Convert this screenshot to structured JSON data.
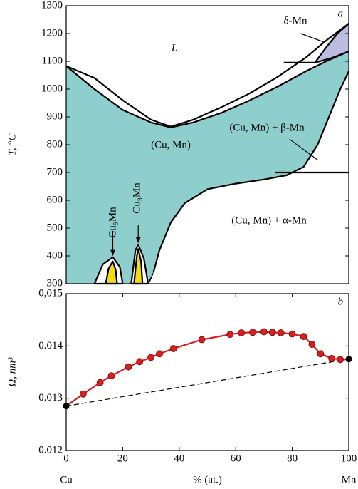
{
  "chart_data": [
    {
      "type": "phase",
      "panel": "a",
      "ylabel": "T, °C",
      "xlim": [
        0,
        100
      ],
      "ylim": [
        300,
        1300
      ],
      "yticks": [
        300,
        400,
        500,
        600,
        700,
        800,
        900,
        1000,
        1100,
        1200,
        1300
      ],
      "annotations": [
        "L",
        "δ-Mn",
        "(Cu, Mn)",
        "(Cu, Mn) + β-Mn",
        "(Cu, Mn) + α-Mn",
        "Cu₅Mn",
        "Cu₃Mn"
      ],
      "series": [
        {
          "color": "#000000",
          "x": [
            0,
            10,
            20,
            30,
            37,
            45,
            55,
            65,
            75,
            85,
            92,
            100
          ],
          "values": [
            1083,
            1040,
            960,
            890,
            865,
            890,
            935,
            985,
            1045,
            1115,
            1175,
            1236
          ]
        },
        {
          "color": "#000000",
          "fill": "#8ecfcd",
          "x": [
            0,
            10,
            20,
            30,
            37,
            45,
            55,
            65,
            75,
            85,
            92,
            100
          ],
          "values": [
            1083,
            1000,
            925,
            880,
            862,
            880,
            915,
            960,
            1010,
            1065,
            1100,
            1136
          ]
        },
        {
          "color": "#000000",
          "dash": "dotted",
          "x": [
            29,
            30,
            31
          ],
          "values": [
            300,
            320,
            345
          ]
        },
        {
          "color": "#000000",
          "x": [
            31,
            33,
            37,
            42,
            50,
            60,
            70,
            78,
            84,
            89,
            93,
            97,
            100
          ],
          "values": [
            345,
            420,
            520,
            590,
            640,
            660,
            675,
            690,
            720,
            800,
            900,
            1000,
            1064
          ]
        },
        {
          "color": "#000000",
          "x": [
            74,
            100
          ],
          "values": [
            700,
            700
          ]
        },
        {
          "color": "#000000",
          "fill": "#bcbce0",
          "x": [
            88,
            92,
            96,
            100
          ],
          "values": [
            1095,
            1150,
            1200,
            1236
          ]
        },
        {
          "color": "#000000",
          "x": [
            88,
            94,
            100
          ],
          "values": [
            1095,
            1112,
            1136
          ]
        },
        {
          "color": "#000000",
          "x": [
            77,
            88
          ],
          "values": [
            1095,
            1095
          ]
        },
        {
          "color": "#000000",
          "fill": "#ffffff",
          "x": [
            10,
            13,
            16.5,
            19,
            20
          ],
          "values": [
            300,
            370,
            395,
            360,
            300
          ]
        },
        {
          "color": "#000000",
          "fill": "#f2dc12",
          "x": [
            14,
            15,
            16.5,
            17.5,
            18
          ],
          "values": [
            300,
            355,
            380,
            350,
            300
          ]
        },
        {
          "color": "#000000",
          "fill": "#ffffff",
          "x": [
            23,
            24.5,
            25.5,
            27.5,
            29
          ],
          "values": [
            300,
            420,
            441,
            390,
            300
          ]
        },
        {
          "color": "#000000",
          "fill": "#f2dc12",
          "x": [
            24,
            25,
            25.5,
            26.5,
            27
          ],
          "values": [
            300,
            400,
            425,
            380,
            300
          ]
        },
        {
          "color": "#000000",
          "x": [
            79,
            89
          ],
          "values": [
            820,
            745
          ]
        },
        {
          "color": "#000000",
          "x": [
            83,
            91
          ],
          "values": [
            1200,
            1170
          ]
        },
        {
          "color": "#000000",
          "arrow": true,
          "x": [
            16.5,
            16.5
          ],
          "values": [
            490,
            402
          ]
        },
        {
          "color": "#000000",
          "arrow": true,
          "x": [
            25.5,
            25.5
          ],
          "values": [
            510,
            448
          ]
        }
      ]
    },
    {
      "type": "line",
      "panel": "b",
      "ylabel": "Ω, nm³",
      "xlabel": "% (at.)",
      "x_end_labels": [
        "Cu",
        "Mn"
      ],
      "xlim": [
        0,
        100
      ],
      "ylim": [
        0.012,
        0.015
      ],
      "xticks": [
        0,
        20,
        40,
        60,
        80,
        100
      ],
      "yticks": [
        {
          "value": 0.015,
          "label": "0,015"
        },
        0.014,
        0.013,
        0.012
      ],
      "series": [
        {
          "color": "#000000",
          "dash": "dashed",
          "x": [
            0,
            100
          ],
          "values": [
            0.01285,
            0.01375
          ]
        },
        {
          "color": "#d62020",
          "x": [
            6,
            12,
            16,
            22,
            26,
            30,
            33,
            38,
            48,
            58,
            62,
            66,
            70,
            73,
            76,
            80,
            84,
            87,
            90,
            94,
            97
          ],
          "values": [
            0.01308,
            0.0133,
            0.01343,
            0.0136,
            0.0137,
            0.01378,
            0.01385,
            0.01395,
            0.01412,
            0.01422,
            0.01425,
            0.01426,
            0.01427,
            0.01426,
            0.01425,
            0.01423,
            0.01418,
            0.01403,
            0.01385,
            0.01376,
            0.01374
          ]
        }
      ]
    }
  ]
}
